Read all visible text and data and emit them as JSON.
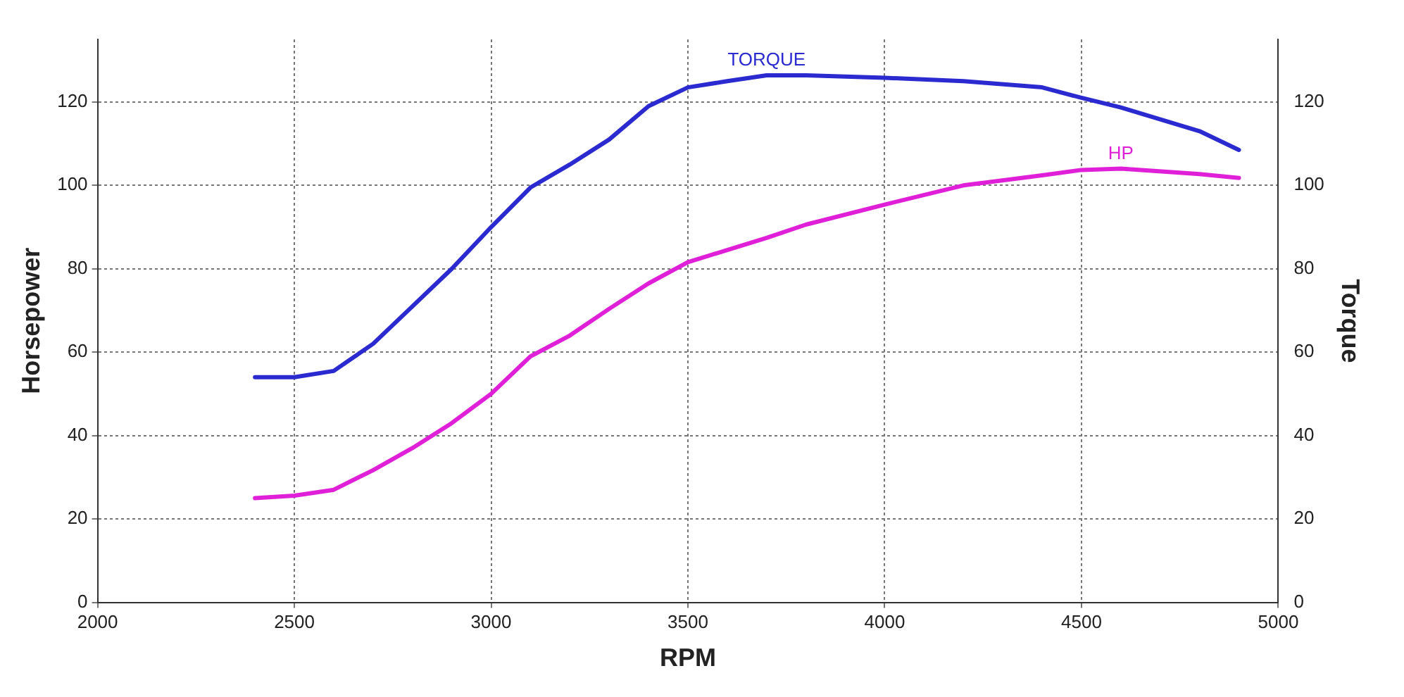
{
  "chart_data": {
    "type": "line",
    "xlabel": "RPM",
    "ylabel": "Horsepower",
    "y2label": "Torque",
    "xlim": [
      2000,
      5000
    ],
    "xticks": [
      2000,
      2500,
      3000,
      3500,
      4000,
      4500,
      5000
    ],
    "ylim": [
      0,
      135
    ],
    "yticks": [
      0,
      20,
      40,
      60,
      80,
      100,
      120
    ],
    "y2lim": [
      0,
      135
    ],
    "y2ticks": [
      0,
      20,
      40,
      60,
      80,
      100,
      120
    ],
    "grid": true,
    "legend": false,
    "marker": "none",
    "line_style": "solid",
    "x": [
      2400,
      2500,
      2600,
      2700,
      2800,
      2900,
      3000,
      3100,
      3200,
      3300,
      3400,
      3500,
      3600,
      3700,
      3800,
      4000,
      4200,
      4400,
      4500,
      4600,
      4800,
      4900
    ],
    "series": [
      {
        "name": "TORQUE",
        "color": "#2a2ad0",
        "axis": "y2",
        "values": [
          54,
          54,
          55.5,
          62,
          71,
          80,
          90,
          99.5,
          105,
          111,
          119,
          123.5,
          125,
          126.4,
          126.4,
          125.8,
          125,
          123.5,
          121,
          118.7,
          113,
          108.5
        ]
      },
      {
        "name": "HP",
        "color": "#e020d8",
        "values": [
          25,
          25.6,
          27,
          31.7,
          37,
          43,
          50,
          59,
          64,
          70.4,
          76.5,
          81.6,
          84.5,
          87.4,
          90.6,
          95.4,
          100,
          102.4,
          103.7,
          104,
          102.7,
          101.8
        ]
      }
    ]
  }
}
